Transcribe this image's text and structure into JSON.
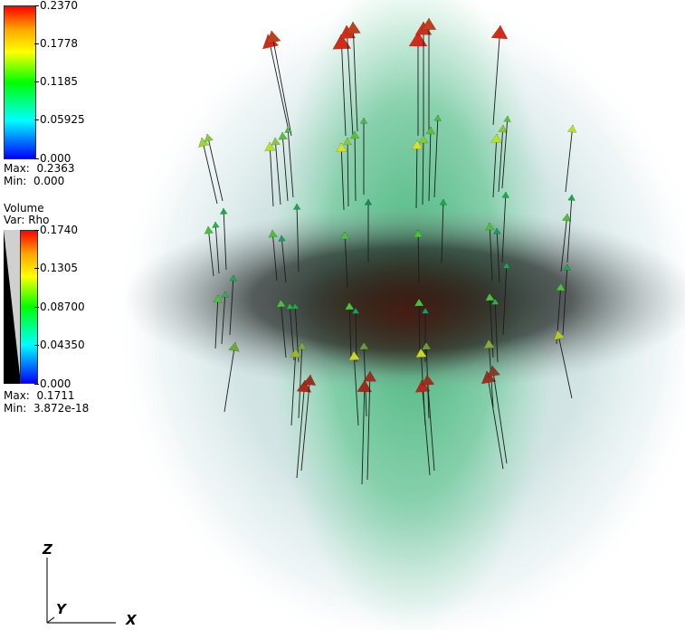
{
  "vector_legend": {
    "ticks": [
      "0.2370",
      "0.1778",
      "0.1185",
      "0.05925",
      "0.000"
    ],
    "max_label": "Max:  0.2363",
    "min_label": "Min:  0.000"
  },
  "volume_legend": {
    "title": "Volume",
    "var_label": "Var: Rho",
    "ticks": [
      "0.1740",
      "0.1305",
      "0.08700",
      "0.04350",
      "0.000"
    ],
    "max_label": "Max:  0.1711",
    "min_label": "Min:  3.872e-18"
  },
  "axes_triad": {
    "z_label": "Z",
    "y_label": "Y",
    "x_label": "X"
  },
  "colors": {
    "background": "#ffffff",
    "glyph_high": "#d42a1a",
    "glyph_mid": "#4cc03a",
    "glyph_low": "#1aa84a",
    "volume_green": "#3fbf72",
    "volume_core": "#3a2414"
  }
}
